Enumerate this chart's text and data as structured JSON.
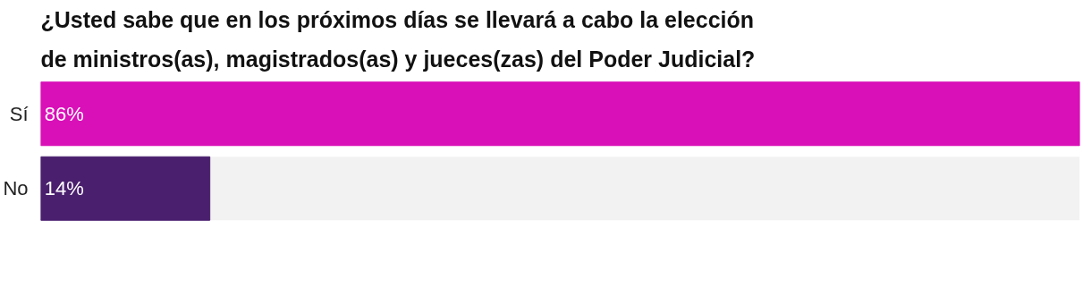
{
  "chart_data": {
    "type": "bar",
    "orientation": "horizontal",
    "title": "¿Usted sabe que en los próximos días se llevará a cabo la elección de ministros(as), magistrados(as) y jueces(zas) del Poder Judicial?",
    "categories": [
      "Sí",
      "No"
    ],
    "values": [
      86,
      14
    ],
    "colors": [
      "#d90fb8",
      "#4a1f6e"
    ],
    "value_labels": [
      "86%",
      "14%"
    ],
    "tick_labels": "y",
    "grid": false
  }
}
